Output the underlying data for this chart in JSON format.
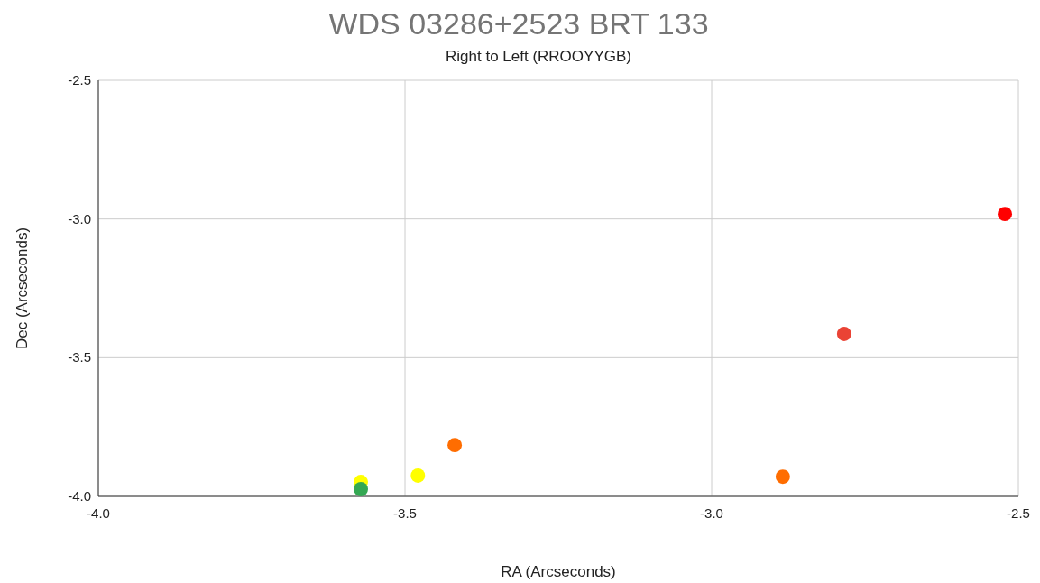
{
  "chart_data": {
    "type": "scatter",
    "title": "WDS 03286+2523 BRT 133",
    "subtitle": "Right to Left (RROOYYGB)",
    "xlabel": "RA (Arcseconds)",
    "ylabel": "Dec (Arcseconds)",
    "x": [
      -2.522,
      -2.784,
      -2.884,
      -3.419,
      -3.479,
      -3.572,
      -3.572
    ],
    "values": [
      -2.982,
      -3.414,
      -3.929,
      -3.815,
      -3.925,
      -3.948,
      -3.974
    ],
    "colors": [
      "#ff0000",
      "#ea4335",
      "#ff6d01",
      "#ff6d01",
      "#ffff00",
      "#ffff00",
      "#34a853"
    ],
    "xlim": [
      -4.0,
      -2.5
    ],
    "xticks": [
      {
        "value": -4,
        "label": "-4.0"
      },
      {
        "value": -3.5,
        "label": "-3.5"
      },
      {
        "value": -3,
        "label": "-3.0"
      },
      {
        "value": -2.5,
        "label": "-2.5"
      }
    ],
    "ylim": [
      -4.0,
      -2.5
    ],
    "yticks": [
      {
        "value": -4,
        "label": "-4.0"
      },
      {
        "value": -3.5,
        "label": "-3.5"
      },
      {
        "value": -3,
        "label": "-3.0"
      },
      {
        "value": -2.5,
        "label": "-2.5"
      }
    ],
    "grid": true,
    "marker": "circle"
  }
}
